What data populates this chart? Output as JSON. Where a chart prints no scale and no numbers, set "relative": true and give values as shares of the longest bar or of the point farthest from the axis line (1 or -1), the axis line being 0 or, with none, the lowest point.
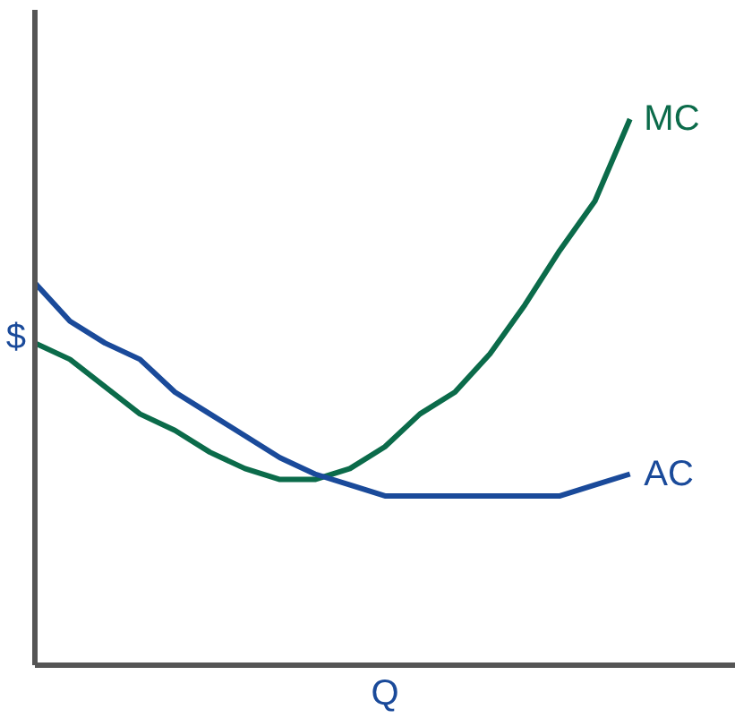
{
  "chart_data": {
    "type": "line",
    "relative": true,
    "xlabel": "Q",
    "ylabel": "$",
    "tick_labels": false,
    "line_style": "solid",
    "marker": "none",
    "categories": [
      null,
      null,
      null,
      null,
      null,
      null,
      null,
      null,
      null,
      null,
      null,
      null,
      null,
      null,
      null,
      null,
      null,
      null
    ],
    "series": [
      {
        "name": "MC",
        "color": "#0b6b4a",
        "values": [
          0.59,
          0.56,
          0.51,
          0.46,
          0.43,
          0.39,
          0.36,
          0.34,
          0.34,
          0.36,
          0.4,
          0.46,
          0.5,
          0.57,
          0.66,
          0.76,
          0.85,
          1.0
        ]
      },
      {
        "name": "AC",
        "color": "#1a4a9a",
        "values": [
          0.7,
          0.63,
          0.59,
          0.56,
          0.5,
          0.46,
          0.42,
          0.38,
          0.35,
          0.33,
          0.31,
          0.31,
          0.31,
          0.31,
          0.31,
          0.31,
          0.33,
          0.35
        ]
      }
    ]
  }
}
